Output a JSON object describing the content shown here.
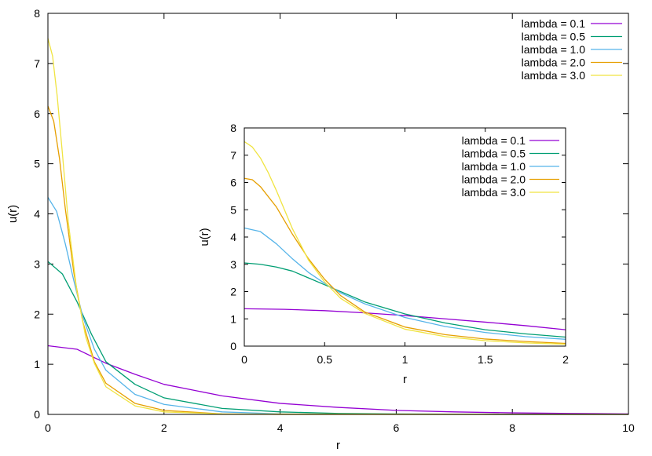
{
  "colors": {
    "series": [
      "#9400d3",
      "#009e73",
      "#56b4e9",
      "#e69f00",
      "#f0e442"
    ]
  },
  "chart_data": [
    {
      "id": "main",
      "type": "line",
      "xlabel": "r",
      "ylabel": "u(r)",
      "xlim": [
        0,
        10
      ],
      "ylim": [
        0,
        8
      ],
      "xticks": [
        0,
        2,
        4,
        6,
        8,
        10
      ],
      "yticks": [
        0,
        1,
        2,
        3,
        4,
        5,
        6,
        7,
        8
      ],
      "grid": false,
      "legend_position": "top-right",
      "series": [
        {
          "name": "lambda = 0.1",
          "x": [
            0,
            0.5,
            1,
            1.5,
            2,
            3,
            4,
            5,
            6,
            7,
            8,
            9,
            10
          ],
          "y": [
            1.37,
            1.3,
            1.02,
            0.8,
            0.6,
            0.37,
            0.22,
            0.14,
            0.08,
            0.05,
            0.03,
            0.02,
            0.01
          ]
        },
        {
          "name": "lambda = 0.5",
          "x": [
            0,
            0.25,
            0.5,
            0.75,
            1,
            1.5,
            2,
            3,
            4,
            5,
            6,
            8,
            10
          ],
          "y": [
            3.05,
            2.8,
            2.25,
            1.6,
            1.05,
            0.6,
            0.33,
            0.12,
            0.05,
            0.02,
            0.01,
            0,
            0
          ]
        },
        {
          "name": "lambda = 1.0",
          "x": [
            0,
            0.15,
            0.3,
            0.45,
            0.6,
            0.8,
            1,
            1.5,
            2,
            3,
            4,
            6,
            10
          ],
          "y": [
            4.33,
            4.05,
            3.4,
            2.65,
            1.95,
            1.3,
            0.88,
            0.4,
            0.2,
            0.05,
            0.01,
            0,
            0
          ]
        },
        {
          "name": "lambda = 2.0",
          "x": [
            0,
            0.1,
            0.2,
            0.3,
            0.45,
            0.6,
            0.8,
            1,
            1.5,
            2,
            3,
            4,
            10
          ],
          "y": [
            6.15,
            5.85,
            5.1,
            4.1,
            2.8,
            1.85,
            1.05,
            0.62,
            0.22,
            0.08,
            0.01,
            0,
            0
          ]
        },
        {
          "name": "lambda = 3.0",
          "x": [
            0,
            0.08,
            0.16,
            0.25,
            0.35,
            0.5,
            0.65,
            0.8,
            1,
            1.5,
            2,
            3,
            10
          ],
          "y": [
            7.5,
            7.15,
            6.35,
            5.2,
            3.85,
            2.45,
            1.55,
            1.02,
            0.55,
            0.17,
            0.05,
            0.01,
            0
          ]
        }
      ]
    },
    {
      "id": "inset",
      "type": "line",
      "xlabel": "r",
      "ylabel": "u(r)",
      "xlim": [
        0,
        2
      ],
      "ylim": [
        0,
        8
      ],
      "xticks": [
        0,
        0.5,
        1,
        1.5,
        2
      ],
      "yticks": [
        0,
        1,
        2,
        3,
        4,
        5,
        6,
        7,
        8
      ],
      "grid": false,
      "legend_position": "top-right",
      "series": [
        {
          "name": "lambda = 0.1",
          "x": [
            0,
            0.25,
            0.5,
            0.75,
            1,
            1.25,
            1.5,
            1.75,
            2
          ],
          "y": [
            1.37,
            1.35,
            1.3,
            1.22,
            1.12,
            1.0,
            0.88,
            0.75,
            0.6
          ]
        },
        {
          "name": "lambda = 0.5",
          "x": [
            0,
            0.1,
            0.2,
            0.3,
            0.4,
            0.5,
            0.75,
            1,
            1.25,
            1.5,
            1.75,
            2
          ],
          "y": [
            3.05,
            3.0,
            2.9,
            2.75,
            2.5,
            2.25,
            1.62,
            1.18,
            0.85,
            0.6,
            0.45,
            0.33
          ]
        },
        {
          "name": "lambda = 1.0",
          "x": [
            0,
            0.1,
            0.2,
            0.3,
            0.4,
            0.5,
            0.6,
            0.75,
            1,
            1.25,
            1.5,
            1.75,
            2
          ],
          "y": [
            4.33,
            4.2,
            3.75,
            3.2,
            2.7,
            2.3,
            1.95,
            1.55,
            1.05,
            0.72,
            0.5,
            0.35,
            0.25
          ]
        },
        {
          "name": "lambda = 2.0",
          "x": [
            0,
            0.05,
            0.1,
            0.2,
            0.3,
            0.4,
            0.5,
            0.6,
            0.75,
            1,
            1.25,
            1.5,
            1.75,
            2
          ],
          "y": [
            6.15,
            6.1,
            5.85,
            5.1,
            4.1,
            3.2,
            2.45,
            1.85,
            1.25,
            0.7,
            0.42,
            0.26,
            0.17,
            0.1
          ]
        },
        {
          "name": "lambda = 3.0",
          "x": [
            0,
            0.05,
            0.1,
            0.15,
            0.2,
            0.3,
            0.4,
            0.5,
            0.6,
            0.75,
            1,
            1.25,
            1.5,
            1.75,
            2
          ],
          "y": [
            7.5,
            7.3,
            6.9,
            6.35,
            5.7,
            4.3,
            3.15,
            2.35,
            1.75,
            1.2,
            0.62,
            0.35,
            0.2,
            0.12,
            0.07
          ]
        }
      ]
    }
  ]
}
